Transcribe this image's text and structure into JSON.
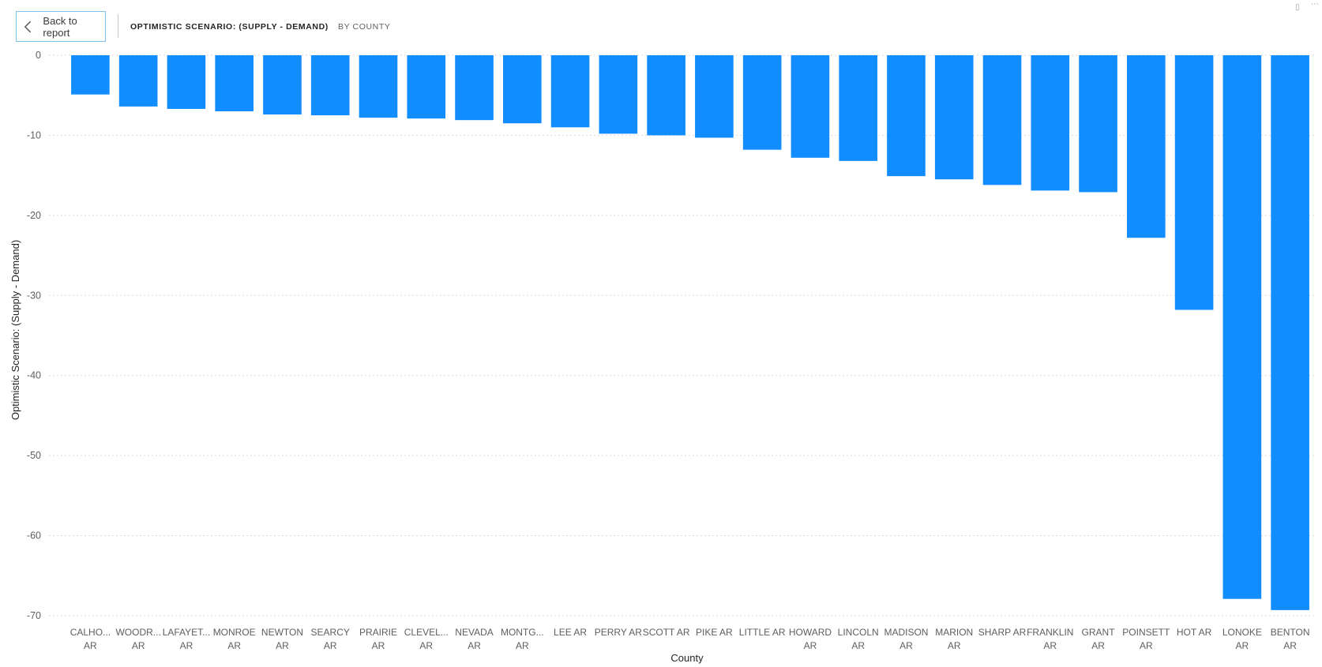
{
  "header": {
    "back_label": "Back to report",
    "title": "OPTIMISTIC SCENARIO: (SUPPLY - DEMAND)",
    "subtitle": "BY COUNTY"
  },
  "icons": {
    "back": "chevron-left-icon",
    "focus": "focus-mode-icon",
    "more": "more-options-icon"
  },
  "chart_data": {
    "type": "bar",
    "xlabel": "County",
    "ylabel": "Optimistic Scenario: (Supply - Demand)",
    "ylim": [
      -70,
      0
    ],
    "yticks": [
      0,
      -10,
      -20,
      -30,
      -40,
      -50,
      -60,
      -70
    ],
    "grid": true,
    "bar_color": "#118DFF",
    "categories": [
      [
        "CALHO...",
        "AR"
      ],
      [
        "WOODR...",
        "AR"
      ],
      [
        "LAFAYET...",
        "AR"
      ],
      [
        "MONROE",
        "AR"
      ],
      [
        "NEWTON",
        "AR"
      ],
      [
        "SEARCY",
        "AR"
      ],
      [
        "PRAIRIE",
        "AR"
      ],
      [
        "CLEVEL...",
        "AR"
      ],
      [
        "NEVADA",
        "AR"
      ],
      [
        "MONTG...",
        "AR"
      ],
      [
        "LEE AR"
      ],
      [
        "PERRY AR"
      ],
      [
        "SCOTT AR"
      ],
      [
        "PIKE AR"
      ],
      [
        "LITTLE AR"
      ],
      [
        "HOWARD",
        "AR"
      ],
      [
        "LINCOLN",
        "AR"
      ],
      [
        "MADISON",
        "AR"
      ],
      [
        "MARION",
        "AR"
      ],
      [
        "SHARP AR"
      ],
      [
        "FRANKLIN",
        "AR"
      ],
      [
        "GRANT",
        "AR"
      ],
      [
        "POINSETT",
        "AR"
      ],
      [
        "HOT AR"
      ],
      [
        "LONOKE",
        "AR"
      ],
      [
        "BENTON",
        "AR"
      ]
    ],
    "values": [
      -4.9,
      -6.4,
      -6.7,
      -7.0,
      -7.4,
      -7.5,
      -7.8,
      -7.9,
      -8.1,
      -8.5,
      -9.0,
      -9.8,
      -10.0,
      -10.3,
      -11.8,
      -12.8,
      -13.2,
      -15.1,
      -15.5,
      -16.2,
      -16.9,
      -17.1,
      -22.8,
      -31.8,
      -67.9,
      -69.3
    ]
  }
}
